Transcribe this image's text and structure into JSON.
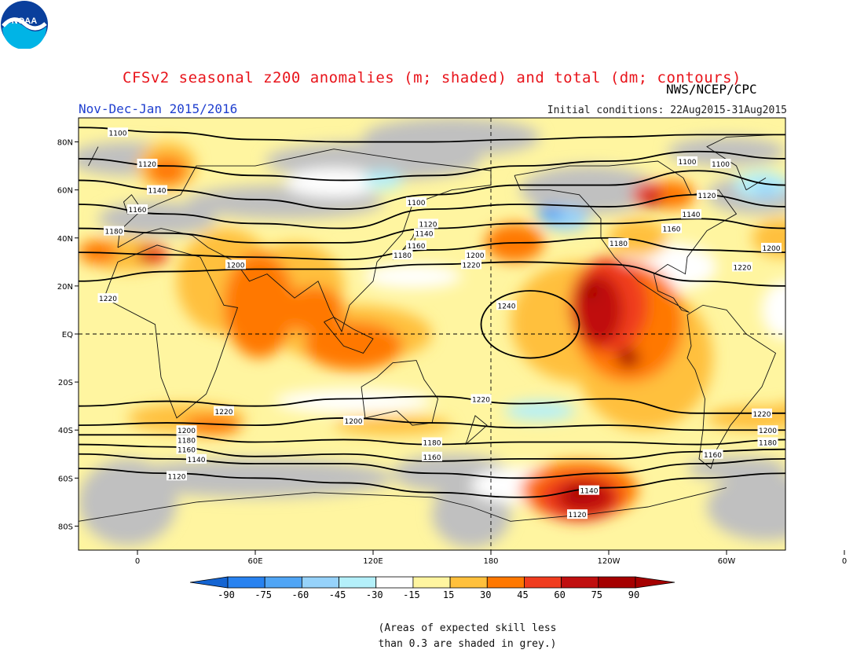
{
  "title": "CFSv2 seasonal z200 anomalies (m; shaded) and total (dm; contours)",
  "source": "NWS/NCEP/CPC",
  "season": "Nov-Dec-Jan 2015/2016",
  "initial_conditions": "Initial conditions: 22Aug2015-31Aug2015",
  "logo_text": "NOAA",
  "note_line1": "(Areas of expected skill less",
  "note_line2": "than 0.3 are shaded in grey.)",
  "colors": {
    "grey_skill": "#c0c0c0",
    "neutral": "#ffffff",
    "scale": [
      "#1464d2",
      "#2882f0",
      "#50a5f5",
      "#96d2fa",
      "#b4f0fa",
      "#ffffff",
      "#fff5a0",
      "#ffc03c",
      "#ff7800",
      "#f03c1e",
      "#c00f0f",
      "#a50000"
    ]
  },
  "chart_data": {
    "type": "heatmap",
    "variable": "z200 anomaly (m) with total height contours (dm)",
    "x_ticks": [
      "0",
      "60E",
      "120E",
      "180",
      "120W",
      "60W",
      "0"
    ],
    "y_ticks": [
      "80N",
      "60N",
      "40N",
      "20N",
      "EQ",
      "20S",
      "40S",
      "60S",
      "80S"
    ],
    "colorbar_labels": [
      "-90",
      "-75",
      "-60",
      "-45",
      "-30",
      "-15",
      "15",
      "30",
      "45",
      "60",
      "75",
      "90"
    ],
    "contour_levels": [
      1100,
      1120,
      1140,
      1160,
      1180,
      1200,
      1220,
      1240
    ],
    "contour_labels": [
      {
        "text": "1100",
        "lon": -10,
        "lat": 84
      },
      {
        "text": "1120",
        "lon": 5,
        "lat": 71
      },
      {
        "text": "1140",
        "lon": 10,
        "lat": 60
      },
      {
        "text": "1160",
        "lon": 0,
        "lat": 52
      },
      {
        "text": "1180",
        "lon": -12,
        "lat": 43
      },
      {
        "text": "1200",
        "lon": 50,
        "lat": 29
      },
      {
        "text": "1220",
        "lon": -15,
        "lat": 15
      },
      {
        "text": "1100",
        "lon": 142,
        "lat": 55
      },
      {
        "text": "1120",
        "lon": 148,
        "lat": 46
      },
      {
        "text": "1140",
        "lon": 146,
        "lat": 42
      },
      {
        "text": "1160",
        "lon": 142,
        "lat": 37
      },
      {
        "text": "1180",
        "lon": 135,
        "lat": 33
      },
      {
        "text": "1200",
        "lon": 172,
        "lat": 33
      },
      {
        "text": "1220",
        "lon": 170,
        "lat": 29
      },
      {
        "text": "1240",
        "lon": 188,
        "lat": 12
      },
      {
        "text": "1100",
        "lon": 280,
        "lat": 72
      },
      {
        "text": "1120",
        "lon": 290,
        "lat": 58
      },
      {
        "text": "1140",
        "lon": 282,
        "lat": 50
      },
      {
        "text": "1160",
        "lon": 272,
        "lat": 44
      },
      {
        "text": "1180",
        "lon": 245,
        "lat": 38
      },
      {
        "text": "1200",
        "lon": 327,
        "lat": 36
      },
      {
        "text": "1220",
        "lon": 308,
        "lat": 28
      },
      {
        "text": "1220",
        "lon": 44,
        "lat": -32
      },
      {
        "text": "1200",
        "lon": 110,
        "lat": -36
      },
      {
        "text": "1220",
        "lon": 175,
        "lat": -27
      },
      {
        "text": "1200",
        "lon": 25,
        "lat": -40
      },
      {
        "text": "1180",
        "lon": 25,
        "lat": -44
      },
      {
        "text": "1160",
        "lon": 25,
        "lat": -48
      },
      {
        "text": "1180",
        "lon": 150,
        "lat": -45
      },
      {
        "text": "1160",
        "lon": 150,
        "lat": -51
      },
      {
        "text": "1140",
        "lon": 30,
        "lat": -52
      },
      {
        "text": "1120",
        "lon": 20,
        "lat": -59
      },
      {
        "text": "1140",
        "lon": 230,
        "lat": -65
      },
      {
        "text": "1120",
        "lon": 224,
        "lat": -75
      },
      {
        "text": "1160",
        "lon": 293,
        "lat": -50
      },
      {
        "text": "1180",
        "lon": 321,
        "lat": -45
      },
      {
        "text": "1200",
        "lon": 321,
        "lat": -40
      },
      {
        "text": "1220",
        "lon": 318,
        "lat": -33
      },
      {
        "text": "1100",
        "lon": 297,
        "lat": 71
      }
    ]
  }
}
